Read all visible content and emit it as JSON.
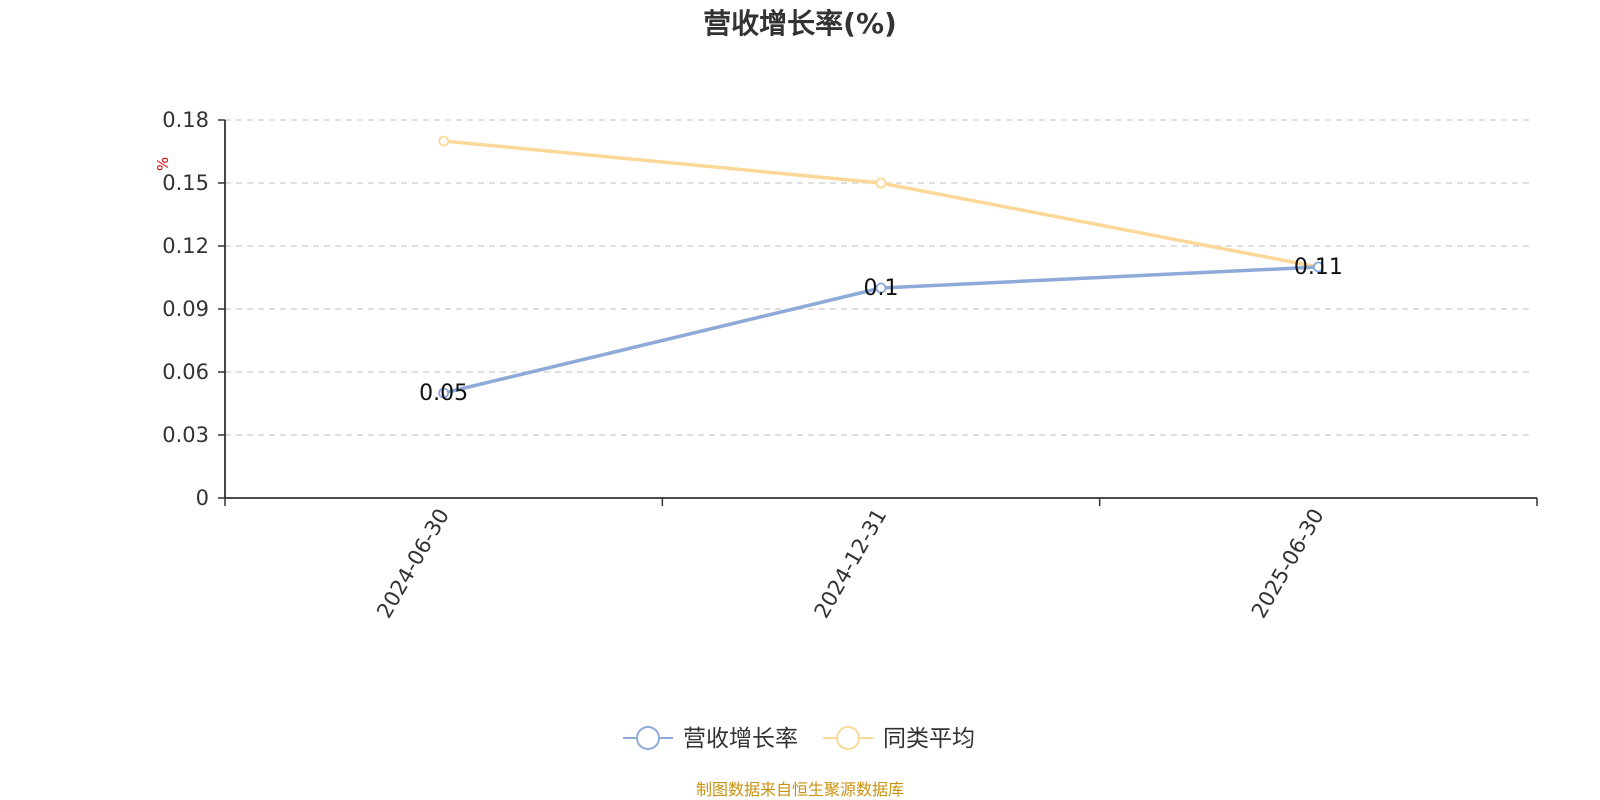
{
  "chart_data": {
    "type": "line",
    "title": "营收增长率(%)",
    "categories": [
      "2024-06-30",
      "2024-12-31",
      "2025-06-30"
    ],
    "ylabel": "%",
    "ylim": [
      0,
      0.18
    ],
    "yticks": [
      "0",
      "0.03",
      "0.06",
      "0.09",
      "0.12",
      "0.15",
      "0.18"
    ],
    "grid": true,
    "legend_position": "bottom",
    "series": [
      {
        "name": "营收增长率",
        "values": [
          0.05,
          0.1,
          0.11
        ],
        "color": "#8eaad8",
        "data_labels": [
          "0.05",
          "0.1",
          "0.11"
        ]
      },
      {
        "name": "同类平均",
        "values": [
          0.17,
          0.15,
          0.11
        ],
        "color": "#fcd898"
      }
    ]
  },
  "source_note": "制图数据来自恒生聚源数据库"
}
